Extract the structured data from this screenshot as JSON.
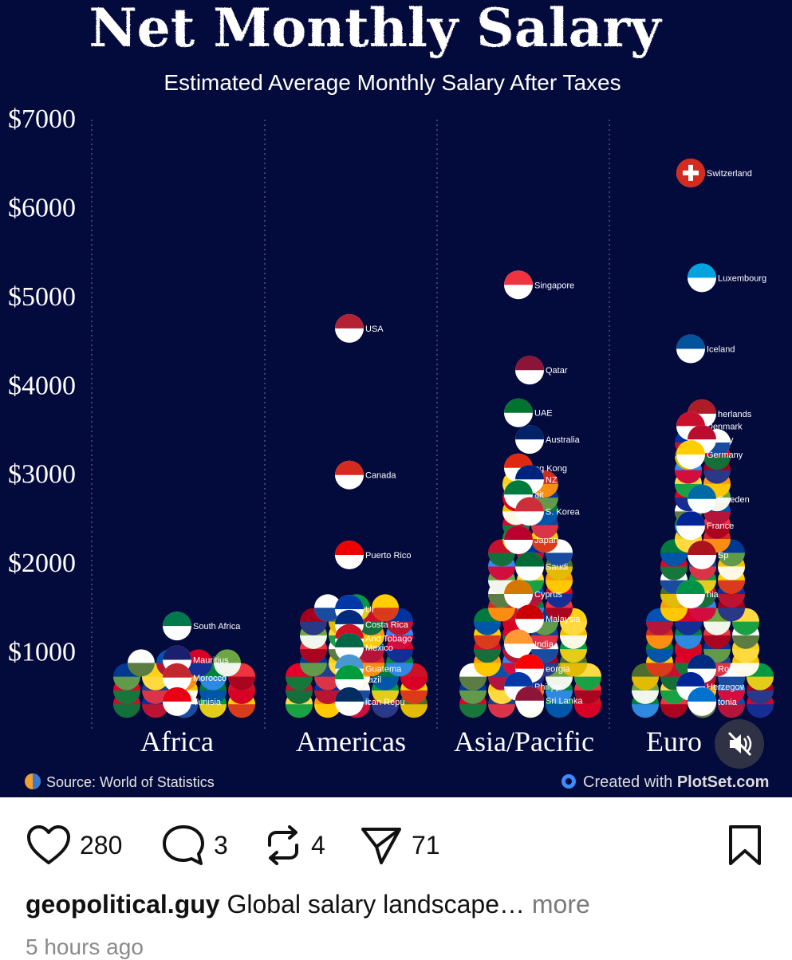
{
  "chart_data": {
    "type": "scatter",
    "title": "Net Monthly Salary",
    "subtitle": "Estimated Average Monthly Salary After Taxes",
    "y_ticks": [
      "$7000",
      "$6000",
      "$5000",
      "$4000",
      "$3000",
      "$2000",
      "$1000"
    ],
    "y_tick_values": [
      7000,
      6000,
      5000,
      4000,
      3000,
      2000,
      1000
    ],
    "ylim": [
      0,
      7000
    ],
    "categories": [
      "Africa",
      "Americas",
      "Asia/Pacific",
      "Euro"
    ],
    "grid": "vertical dotted",
    "series": [
      {
        "category": "Africa",
        "points": [
          {
            "label": "South Africa",
            "value": 1300,
            "flag": "#007a4d"
          },
          {
            "label": "Mauritius",
            "value": 920,
            "flag": "#1a206d"
          },
          {
            "label": "Morocco",
            "value": 720,
            "flag": "#c1272d"
          },
          {
            "label": "Tunisia",
            "value": 450,
            "flag": "#e70013"
          }
        ]
      },
      {
        "category": "Americas",
        "points": [
          {
            "label": "USA",
            "value": 4650,
            "flag": "#b22234"
          },
          {
            "label": "Canada",
            "value": 3000,
            "flag": "#d52b1e"
          },
          {
            "label": "Puerto Rico",
            "value": 2100,
            "flag": "#ed0000"
          },
          {
            "label": "Ur",
            "value": 1490,
            "flag": "#0038a8"
          },
          {
            "label": "Costa Rica",
            "value": 1320,
            "flag": "#002b7f"
          },
          {
            "label": "And Tobago",
            "value": 1160,
            "flag": "#ce1126"
          },
          {
            "label": "Mexico",
            "value": 1060,
            "flag": "#006847"
          },
          {
            "label": "Guatema",
            "value": 820,
            "flag": "#4997d0"
          },
          {
            "label": "razil",
            "value": 700,
            "flag": "#009c3b"
          },
          {
            "label": "ican Repu",
            "value": 450,
            "flag": "#002d62"
          }
        ]
      },
      {
        "category": "Asia/Pacific",
        "points": [
          {
            "label": "Singapore",
            "value": 5140,
            "flag": "#ef3340"
          },
          {
            "label": "Qatar",
            "value": 4180,
            "flag": "#8a1538"
          },
          {
            "label": "UAE",
            "value": 3700,
            "flag": "#00732f"
          },
          {
            "label": "Australia",
            "value": 3400,
            "flag": "#012169"
          },
          {
            "label": "ng Kong",
            "value": 3080,
            "flag": "#de2910"
          },
          {
            "label": "NZ",
            "value": 2950,
            "flag": "#00247d"
          },
          {
            "label": "ait",
            "value": 2780,
            "flag": "#007a3d"
          },
          {
            "label": "S. Korea",
            "value": 2590,
            "flag": "#cd2e3a"
          },
          {
            "label": "Japan",
            "value": 2270,
            "flag": "#bc002d"
          },
          {
            "label": "Saudi",
            "value": 1970,
            "flag": "#006c35"
          },
          {
            "label": "Cyprus",
            "value": 1660,
            "flag": "#d57800"
          },
          {
            "label": "Malaysia",
            "value": 1380,
            "flag": "#cc0001"
          },
          {
            "label": "India",
            "value": 1100,
            "flag": "#ff9933"
          },
          {
            "label": "eorgia",
            "value": 820,
            "flag": "#ff0000"
          },
          {
            "label": "Philipp",
            "value": 620,
            "flag": "#0038a8"
          },
          {
            "label": "Sri Lanka",
            "value": 460,
            "flag": "#8d153a"
          }
        ]
      },
      {
        "category": "Euro",
        "points": [
          {
            "label": "Switzerland",
            "value": 6400,
            "flag": "#d52b1e"
          },
          {
            "label": "Luxembourg",
            "value": 5220,
            "flag": "#00a3e0"
          },
          {
            "label": "Iceland",
            "value": 4420,
            "flag": "#02529c"
          },
          {
            "label": "herlands",
            "value": 3690,
            "flag": "#ae1c28"
          },
          {
            "label": "Denmark",
            "value": 3550,
            "flag": "#c8102e"
          },
          {
            "label": "way",
            "value": 3400,
            "flag": "#ba0c2f"
          },
          {
            "label": "Germany",
            "value": 3230,
            "flag": "#ffce00"
          },
          {
            "label": "Sweden",
            "value": 2730,
            "flag": "#006aa7"
          },
          {
            "label": "France",
            "value": 2430,
            "flag": "#002395"
          },
          {
            "label": "Sp",
            "value": 2100,
            "flag": "#aa151b"
          },
          {
            "label": "hia",
            "value": 1660,
            "flag": "#009246"
          },
          {
            "label": "Romania",
            "value": 820,
            "flag": "#002b7f"
          },
          {
            "label": "Herzegov",
            "value": 620,
            "flag": "#002395"
          },
          {
            "label": "tonia",
            "value": 450,
            "flag": "#0072ce"
          }
        ]
      }
    ],
    "filler_flags": [
      "#c8102e",
      "#0033a0",
      "#ffffff",
      "#009a44",
      "#ffcd00",
      "#e4002b",
      "#1c3f94",
      "#f4c300",
      "#007a3d",
      "#ce1126",
      "#003893",
      "#fcd116",
      "#d52b1e",
      "#00843d",
      "#ef3340",
      "#ffffff",
      "#0052b4",
      "#d80027",
      "#6da544",
      "#ffda44",
      "#ff9811",
      "#338af3",
      "#a2001d",
      "#496e2d"
    ]
  },
  "overlay": {
    "source_icon": "globe-icon",
    "source_text": "Source: World of Statistics",
    "plotset_icon": "plotset-logo-icon",
    "plotset_prefix": "Created with ",
    "plotset_brand": "PlotSet.com",
    "mute_icon": "speaker-muted-icon"
  },
  "actions": {
    "like_count": "280",
    "comment_count": "3",
    "repost_count": "4",
    "share_count": "71",
    "like_icon": "heart-icon",
    "comment_icon": "speech-bubble-icon",
    "repost_icon": "repost-arrows-icon",
    "share_icon": "paper-plane-icon",
    "save_icon": "bookmark-icon"
  },
  "caption": {
    "username": "geopolitical.guy",
    "text": "Global salary landscape…",
    "more": "more"
  },
  "timestamp": "5 hours ago"
}
